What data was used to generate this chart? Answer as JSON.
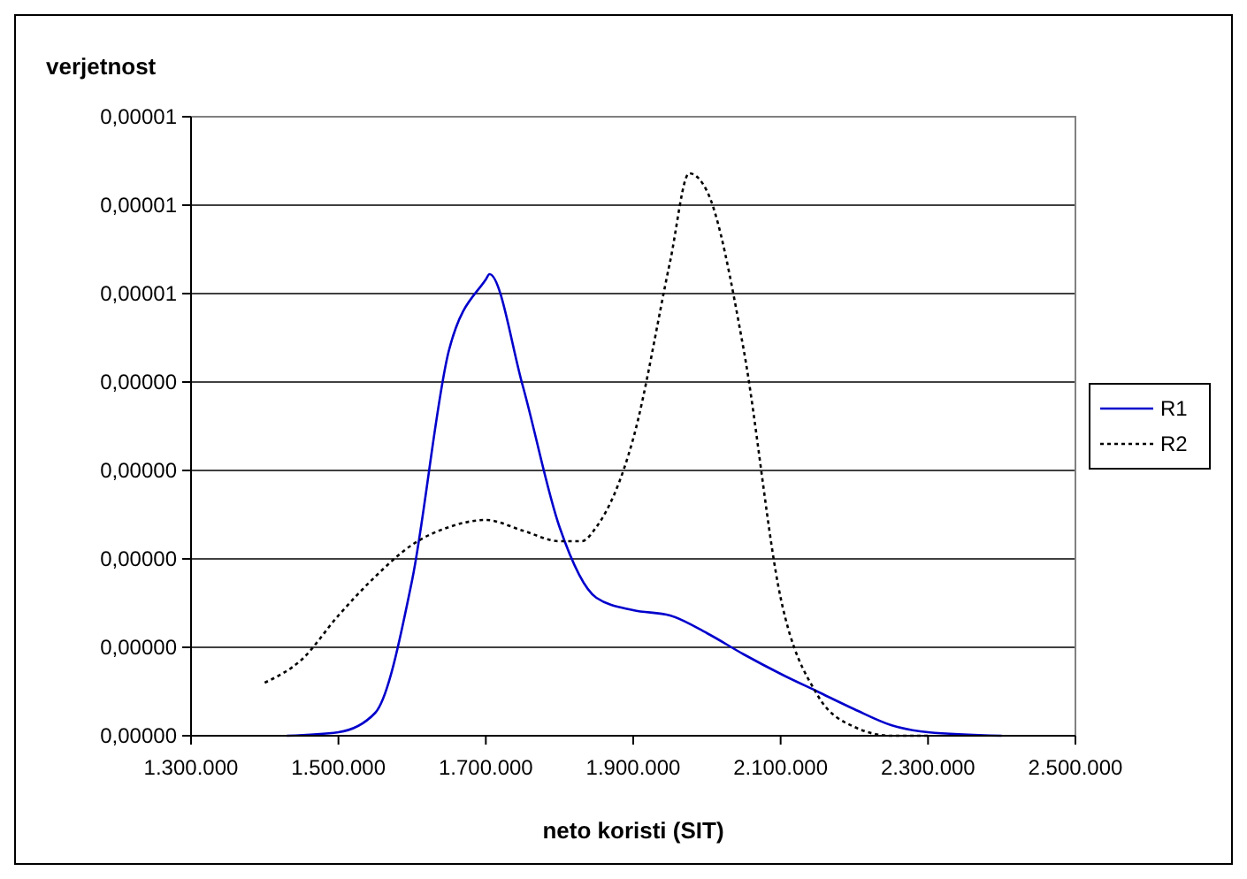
{
  "chart_data": {
    "type": "line",
    "ylabel": "verjetnost",
    "xlabel": "neto koristi (SIT)",
    "xlim": [
      1300000,
      2500000
    ],
    "xticks": [
      {
        "value": 1300000,
        "label": "1.300.000"
      },
      {
        "value": 1500000,
        "label": "1.500.000"
      },
      {
        "value": 1700000,
        "label": "1.700.000"
      },
      {
        "value": 1900000,
        "label": "1.900.000"
      },
      {
        "value": 2100000,
        "label": "2.100.000"
      },
      {
        "value": 2300000,
        "label": "2.300.000"
      },
      {
        "value": 2500000,
        "label": "2.500.000"
      }
    ],
    "ylim": [
      0,
      7e-06
    ],
    "yticks": [
      {
        "value": 0,
        "label": "0,00000"
      },
      {
        "value": 1e-06,
        "label": "0,00000"
      },
      {
        "value": 2e-06,
        "label": "0,00000"
      },
      {
        "value": 3e-06,
        "label": "0,00000"
      },
      {
        "value": 4e-06,
        "label": "0,00000"
      },
      {
        "value": 5e-06,
        "label": "0,00001"
      },
      {
        "value": 6e-06,
        "label": "0,00001"
      },
      {
        "value": 7e-06,
        "label": "0,00001"
      }
    ],
    "grid": "y",
    "legend": "right",
    "series": [
      {
        "name": "R1",
        "color": "#0000cc",
        "line_style": "solid",
        "x": [
          1430000,
          1500000,
          1550000,
          1600000,
          1650000,
          1700000,
          1705000,
          1750000,
          1800000,
          1850000,
          1900000,
          1950000,
          2000000,
          2050000,
          2100000,
          2150000,
          2200000,
          2250000,
          2300000,
          2400000
        ],
        "values": [
          0,
          4e-08,
          2.6e-07,
          1.76e-06,
          4.36e-06,
          5.16e-06,
          5.22e-06,
          3.96e-06,
          2.36e-06,
          1.56e-06,
          1.42e-06,
          1.36e-06,
          1.16e-06,
          9.2e-07,
          7e-07,
          5e-07,
          3e-07,
          1.2e-07,
          4e-08,
          0
        ]
      },
      {
        "name": "R2",
        "color": "#000000",
        "line_style": "dotted",
        "x": [
          1400000,
          1450000,
          1500000,
          1550000,
          1600000,
          1650000,
          1700000,
          1750000,
          1800000,
          1830000,
          1850000,
          1900000,
          1950000,
          1976000,
          2000000,
          2050000,
          2100000,
          2150000,
          2200000,
          2250000,
          2300000
        ],
        "values": [
          6e-07,
          8.6e-07,
          1.36e-06,
          1.8e-06,
          2.16e-06,
          2.36e-06,
          2.44e-06,
          2.32e-06,
          2.2e-06,
          2.2e-06,
          2.36e-06,
          3.36e-06,
          5.36e-06,
          6.36e-06,
          6.16e-06,
          4.36e-06,
          1.56e-06,
          4.6e-07,
          1e-07,
          0,
          0
        ]
      }
    ]
  }
}
